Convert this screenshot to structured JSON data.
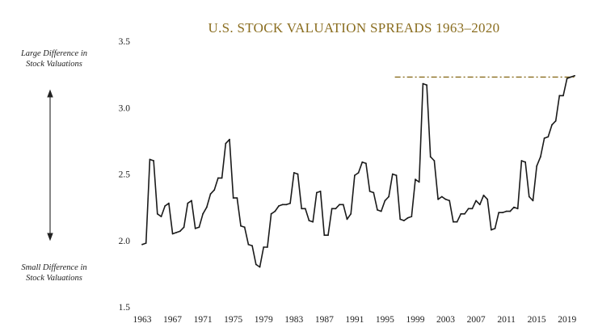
{
  "colors": {
    "title": "#8a6d1f",
    "line": "#1a1a1a",
    "reference": "#8a6d1f",
    "arrow": "#222222"
  },
  "chart_data": {
    "type": "line",
    "title": "U.S. STOCK VALUATION SPREADS 1963–2020",
    "xlabel": "",
    "ylabel": "",
    "xlim": [
      1963,
      2020.2
    ],
    "ylim": [
      1.5,
      3.5
    ],
    "y_ticks": [
      "1.5",
      "2.0",
      "2.5",
      "3.0",
      "3.5"
    ],
    "y_tick_values": [
      1.5,
      2.0,
      2.5,
      3.0,
      3.5
    ],
    "x_ticks": [
      "1963",
      "1967",
      "1971",
      "1975",
      "1979",
      "1983",
      "1987",
      "1991",
      "1995",
      "1999",
      "2003",
      "2007",
      "2011",
      "2015",
      "2019"
    ],
    "x_tick_values": [
      1963,
      1967,
      1971,
      1975,
      1979,
      1983,
      1987,
      1991,
      1995,
      1999,
      2003,
      2007,
      2011,
      2015,
      2019
    ],
    "grid": false,
    "top_label": [
      "Large Difference in",
      "Stock Valuations"
    ],
    "bottom_label": [
      "Small Difference in",
      "Stock Valuations"
    ],
    "reference_line": {
      "y": 3.23,
      "x_start": 1996.3,
      "x_end": 2020.2,
      "style": "dash-dot"
    },
    "series": [
      {
        "x": [
          1963.0,
          1963.5,
          1964.0,
          1964.5,
          1965.0,
          1965.5,
          1966.0,
          1966.5,
          1967.0,
          1967.5,
          1968.0,
          1968.5,
          1969.0,
          1969.5,
          1970.0,
          1970.5,
          1971.0,
          1971.5,
          1972.0,
          1972.5,
          1973.0,
          1973.5,
          1974.0,
          1974.5,
          1975.0,
          1975.5,
          1976.0,
          1976.5,
          1977.0,
          1977.5,
          1978.0,
          1978.5,
          1979.0,
          1979.5,
          1980.0,
          1980.5,
          1981.0,
          1981.5,
          1982.0,
          1982.5,
          1983.0,
          1983.5,
          1984.0,
          1984.5,
          1985.0,
          1985.5,
          1986.0,
          1986.5,
          1987.0,
          1987.5,
          1988.0,
          1988.5,
          1989.0,
          1989.5,
          1990.0,
          1990.5,
          1991.0,
          1991.5,
          1992.0,
          1992.5,
          1993.0,
          1993.5,
          1994.0,
          1994.5,
          1995.0,
          1995.5,
          1996.0,
          1996.5,
          1997.0,
          1997.5,
          1998.0,
          1998.5,
          1999.0,
          1999.5,
          2000.0,
          2000.5,
          2001.0,
          2001.5,
          2002.0,
          2002.5,
          2003.0,
          2003.5,
          2004.0,
          2004.5,
          2005.0,
          2005.5,
          2006.0,
          2006.5,
          2007.0,
          2007.5,
          2008.0,
          2008.5,
          2009.0,
          2009.5,
          2010.0,
          2010.5,
          2011.0,
          2011.5,
          2012.0,
          2012.5,
          2013.0,
          2013.5,
          2014.0,
          2014.5,
          2015.0,
          2015.5,
          2016.0,
          2016.5,
          2017.0,
          2017.5,
          2018.0,
          2018.5,
          2019.0,
          2019.5,
          2020.0
        ],
        "values": [
          1.97,
          1.98,
          2.61,
          2.6,
          2.2,
          2.18,
          2.26,
          2.28,
          2.05,
          2.06,
          2.07,
          2.1,
          2.28,
          2.3,
          2.09,
          2.1,
          2.2,
          2.25,
          2.35,
          2.38,
          2.47,
          2.47,
          2.73,
          2.76,
          2.32,
          2.32,
          2.11,
          2.1,
          1.97,
          1.96,
          1.82,
          1.8,
          1.95,
          1.95,
          2.2,
          2.22,
          2.26,
          2.27,
          2.27,
          2.28,
          2.51,
          2.5,
          2.24,
          2.24,
          2.15,
          2.14,
          2.36,
          2.37,
          2.04,
          2.04,
          2.24,
          2.24,
          2.27,
          2.27,
          2.16,
          2.2,
          2.49,
          2.51,
          2.59,
          2.58,
          2.37,
          2.36,
          2.23,
          2.22,
          2.3,
          2.33,
          2.5,
          2.49,
          2.16,
          2.15,
          2.17,
          2.18,
          2.46,
          2.44,
          3.18,
          3.17,
          2.63,
          2.6,
          2.31,
          2.33,
          2.31,
          2.3,
          2.14,
          2.14,
          2.2,
          2.2,
          2.24,
          2.24,
          2.3,
          2.27,
          2.34,
          2.31,
          2.08,
          2.09,
          2.21,
          2.21,
          2.22,
          2.22,
          2.25,
          2.24,
          2.6,
          2.59,
          2.33,
          2.3,
          2.56,
          2.63,
          2.77,
          2.78,
          2.87,
          2.9,
          3.09,
          3.09,
          3.22,
          3.23,
          3.24
        ]
      }
    ]
  }
}
